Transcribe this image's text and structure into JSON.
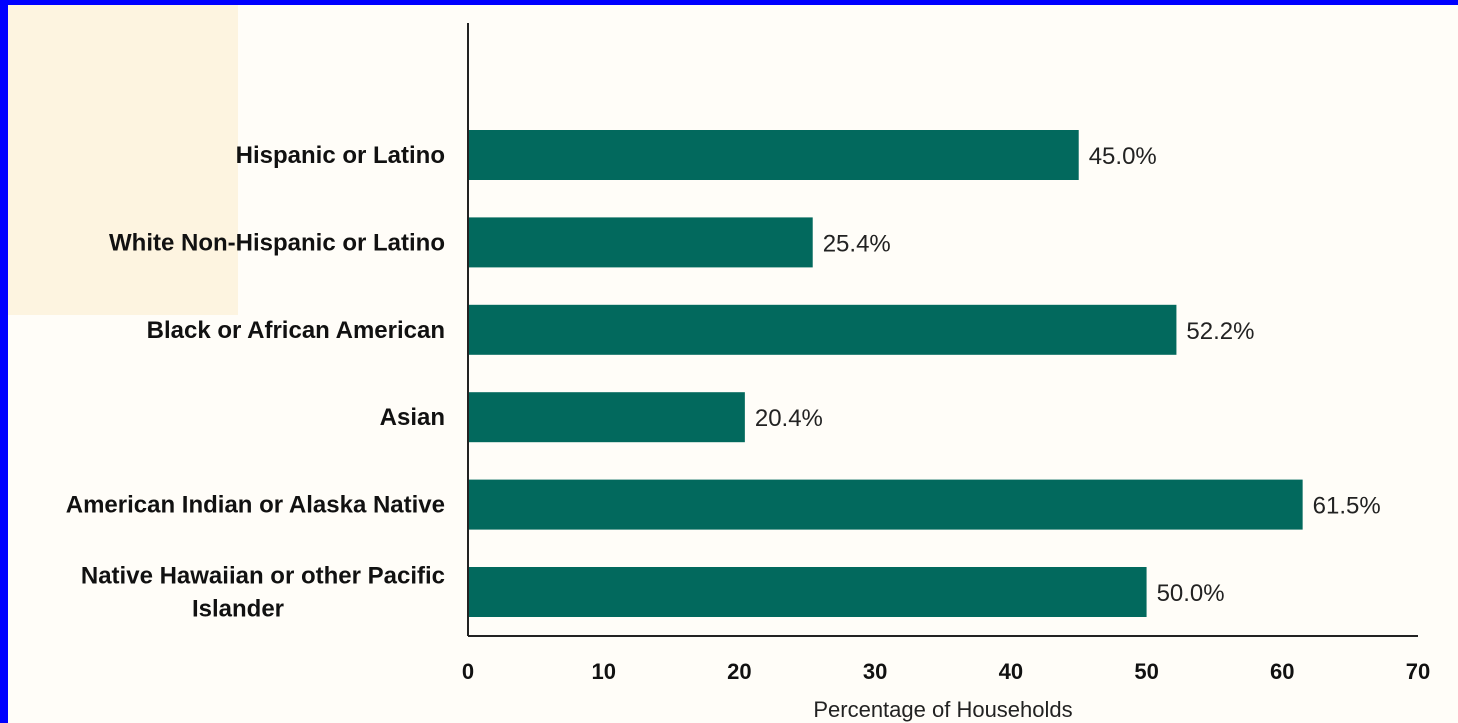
{
  "colors": {
    "bar": "#02695d",
    "axis": "#222222",
    "frame": "#0000ff",
    "background": "#fffdf8"
  },
  "chart_data": {
    "type": "bar",
    "orientation": "horizontal",
    "categories": [
      "Hispanic or Latino",
      "White Non-Hispanic or Latino",
      "Black or African American",
      "Asian",
      "American Indian or Alaska Native",
      "Native Hawaiian or other Pacific Islander"
    ],
    "category_lines": [
      [
        "Hispanic or Latino"
      ],
      [
        "White Non-Hispanic or Latino"
      ],
      [
        "Black or African American"
      ],
      [
        "Asian"
      ],
      [
        "American Indian or Alaska Native"
      ],
      [
        "Native Hawaiian or other Pacific",
        "Islander"
      ]
    ],
    "values": [
      45.0,
      25.4,
      52.2,
      20.4,
      61.5,
      50.0
    ],
    "value_labels": [
      "45.0%",
      "25.4%",
      "52.2%",
      "20.4%",
      "61.5%",
      "50.0%"
    ],
    "title": "",
    "xlabel": "Percentage of Households",
    "ylabel": "",
    "xlim": [
      0,
      70
    ],
    "xticks": [
      0,
      10,
      20,
      30,
      40,
      50,
      60,
      70
    ],
    "grid": false,
    "legend": "none"
  }
}
